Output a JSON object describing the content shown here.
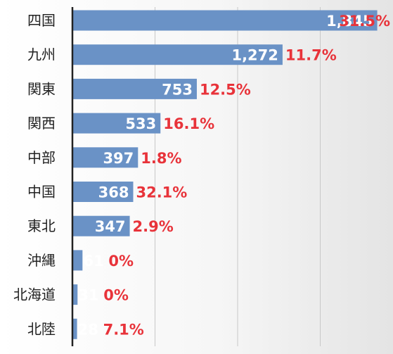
{
  "chart_data": {
    "type": "bar",
    "orientation": "horizontal",
    "categories": [
      "四国",
      "九州",
      "関東",
      "関西",
      "中部",
      "中国",
      "東北",
      "沖縄",
      "北海道",
      "北陸"
    ],
    "values": [
      1845,
      1272,
      753,
      533,
      397,
      368,
      347,
      61,
      31,
      28
    ],
    "value_labels": [
      "1,845",
      "1,272",
      "753",
      "533",
      "397",
      "368",
      "347",
      "61",
      "31",
      "28"
    ],
    "percent_labels": [
      "31.5%",
      "11.7%",
      "12.5%",
      "16.1%",
      "1.8%",
      "32.1%",
      "2.9%",
      "0%",
      "0%",
      "7.1%"
    ],
    "xlim": [
      0,
      2000
    ],
    "grid": true,
    "legend": "none",
    "colors": {
      "bar": "#6a92c6",
      "percent": "#e8333a",
      "value": "#ffffff"
    }
  }
}
